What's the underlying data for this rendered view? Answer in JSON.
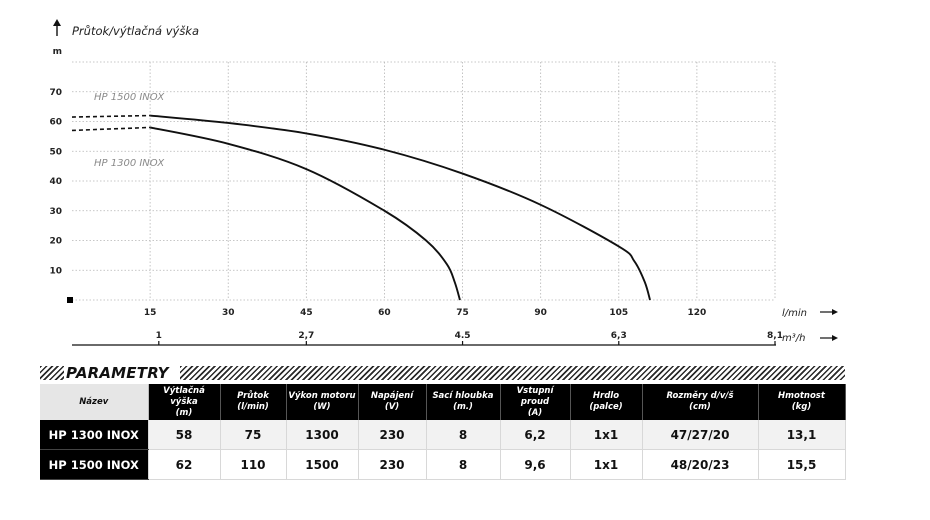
{
  "chart_data": {
    "type": "line",
    "y_title": "Průtok/výtlačná výška",
    "y_unit": "m",
    "y_ticks": [
      10,
      20,
      30,
      40,
      50,
      60,
      70
    ],
    "ylim": [
      0,
      80
    ],
    "x_ticks_lmin": [
      15,
      30,
      45,
      60,
      75,
      90,
      105,
      120
    ],
    "x_unit_lmin": "l/min",
    "xlim_lmin": [
      0,
      135
    ],
    "x_ticks_m3h": [
      {
        "label": "1",
        "lmin": 16.67
      },
      {
        "label": "2,7",
        "lmin": 45
      },
      {
        "label": "4.5",
        "lmin": 75
      },
      {
        "label": "6,3",
        "lmin": 105
      },
      {
        "label": "8,1",
        "lmin": 135
      }
    ],
    "x_unit_m3h": "m³/h",
    "grid": true,
    "series": [
      {
        "name": "HP 1500 INOX",
        "dashed": [
          [
            0,
            61.5
          ],
          [
            15,
            62
          ]
        ],
        "points": [
          [
            15,
            62
          ],
          [
            30,
            59.5
          ],
          [
            45,
            56
          ],
          [
            60,
            50.5
          ],
          [
            75,
            42.5
          ],
          [
            90,
            32
          ],
          [
            105,
            18
          ],
          [
            108,
            13
          ],
          [
            110,
            6
          ],
          [
            111,
            0
          ]
        ]
      },
      {
        "name": "HP 1300 INOX",
        "dashed": [
          [
            0,
            57
          ],
          [
            15,
            58
          ]
        ],
        "points": [
          [
            15,
            58
          ],
          [
            30,
            52.5
          ],
          [
            45,
            44
          ],
          [
            60,
            30
          ],
          [
            68,
            20
          ],
          [
            72,
            12
          ],
          [
            73.5,
            6
          ],
          [
            74.5,
            0
          ]
        ]
      }
    ]
  },
  "parameters": {
    "title": "PARAMETRY",
    "headers": [
      {
        "line1": "Název",
        "line2": ""
      },
      {
        "line1": "Výtlačná výška",
        "line2": "(m)"
      },
      {
        "line1": "Průtok",
        "line2": "(l/min)"
      },
      {
        "line1": "Výkon motoru",
        "line2": "(W)"
      },
      {
        "line1": "Napájení",
        "line2": "(V)"
      },
      {
        "line1": "Sací hloubka",
        "line2": "(m.)"
      },
      {
        "line1": "Vstupní proud",
        "line2": "(A)"
      },
      {
        "line1": "Hrdlo",
        "line2": "(palce)"
      },
      {
        "line1": "Rozměry d/v/š",
        "line2": "(cm)"
      },
      {
        "line1": "Hmotnost",
        "line2": "(kg)"
      }
    ],
    "rows": [
      [
        "HP 1300 INOX",
        "58",
        "75",
        "1300",
        "230",
        "8",
        "6,2",
        "1x1",
        "47/27/20",
        "13,1"
      ],
      [
        "HP 1500 INOX",
        "62",
        "110",
        "1500",
        "230",
        "8",
        "9,6",
        "1x1",
        "48/20/23",
        "15,5"
      ]
    ]
  }
}
